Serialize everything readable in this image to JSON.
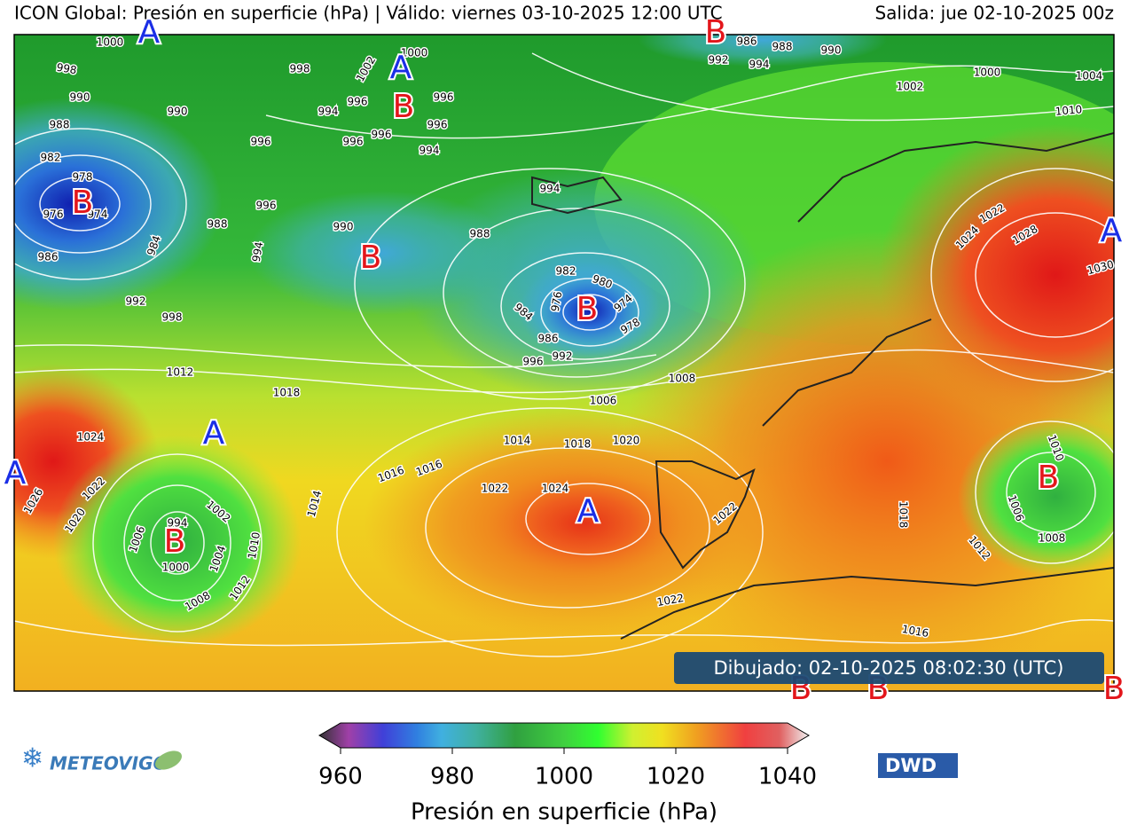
{
  "header": {
    "title": "ICON Global: Presión en superficie (hPa) | Válido: viernes 03-10-2025 12:00 UTC",
    "run": "Salida: jue 02-10-2025 00z"
  },
  "map": {
    "center_colors": {
      "A": "#1a2ee6",
      "B": "#e3161b"
    },
    "centers": [
      {
        "label": "A"
      },
      {
        "label": "B"
      },
      {
        "label": "A"
      },
      {
        "label": "B"
      },
      {
        "label": "B"
      },
      {
        "label": "B"
      },
      {
        "label": "B"
      },
      {
        "label": "A"
      },
      {
        "label": "A"
      },
      {
        "label": "A"
      },
      {
        "label": "B"
      },
      {
        "label": "A"
      },
      {
        "label": "B"
      },
      {
        "label": "B"
      },
      {
        "label": "B"
      },
      {
        "label": "B"
      }
    ],
    "isobar_labels": [
      1000,
      998,
      990,
      988,
      982,
      978,
      976,
      974,
      986,
      984,
      988,
      992,
      998,
      990,
      996,
      996,
      994,
      998,
      1002,
      1000,
      994,
      996,
      996,
      996,
      996,
      996,
      994,
      990,
      988,
      994,
      982,
      980,
      976,
      974,
      984,
      986,
      978,
      992,
      996,
      1008,
      1006,
      1012,
      1018,
      1024,
      1014,
      1018,
      1020,
      1016,
      1016,
      1022,
      1024,
      1026,
      1022,
      1020,
      1014,
      1006,
      1002,
      1004,
      1010,
      1000,
      1012,
      1008,
      994,
      1022,
      1022,
      1016,
      1018,
      1012,
      1008,
      1006,
      1010,
      986,
      988,
      990,
      992,
      994,
      1000,
      1002,
      1004,
      1010,
      1022,
      1024,
      1028,
      1030
    ],
    "drawn": "Dibujado: 02-10-2025 08:02:30 (UTC)"
  },
  "colorbar": {
    "label": "Presión en superficie (hPa)",
    "lim": [
      960,
      1040
    ],
    "ticks": [
      960,
      980,
      1000,
      1020,
      1040
    ]
  },
  "logos": {
    "left": "METEOVIGO",
    "right": "DWD"
  }
}
